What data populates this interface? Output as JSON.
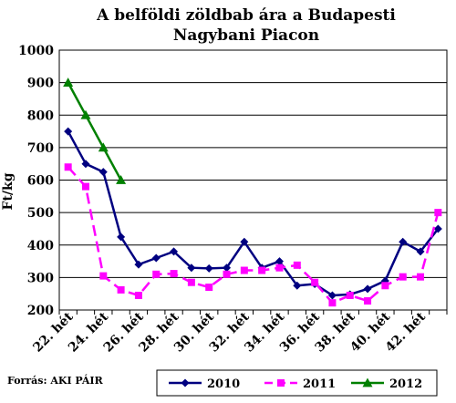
{
  "chart_data": {
    "type": "line",
    "title_line1": "A belföldi zöldbab ára a Budapesti",
    "title_line2": "Nagybani Piacon",
    "ylabel": "Ft/kg",
    "ylim": [
      200,
      1000
    ],
    "yticks": [
      200,
      300,
      400,
      500,
      600,
      700,
      800,
      900,
      1000
    ],
    "grid": true,
    "legend_position": "bottom",
    "source": "Forrás: AKI PÁIR",
    "x": [
      "22. hét",
      "23. hét",
      "24. hét",
      "25. hét",
      "26. hét",
      "27. hét",
      "28. hét",
      "29. hét",
      "30. hét",
      "31. hét",
      "32. hét",
      "33. hét",
      "34. hét",
      "35. hét",
      "36. hét",
      "37. hét",
      "38. hét",
      "39. hét",
      "40. hét",
      "41. hét",
      "42. hét",
      "43. hét"
    ],
    "xtick_labels": [
      "22. hét",
      "24. hét",
      "26. hét",
      "28. hét",
      "30. hét",
      "32. hét",
      "34. hét",
      "36. hét",
      "38. hét",
      "40. hét",
      "42. hét"
    ],
    "series": [
      {
        "name": "2010",
        "color": "#000080",
        "marker": "diamond",
        "dash": "solid",
        "values": [
          750,
          650,
          625,
          425,
          340,
          360,
          380,
          330,
          328,
          330,
          410,
          330,
          350,
          275,
          280,
          245,
          248,
          265,
          290,
          410,
          380,
          450
        ]
      },
      {
        "name": "2011",
        "color": "#FF00FF",
        "marker": "square",
        "dash": "dashed",
        "values": [
          640,
          580,
          305,
          262,
          245,
          310,
          312,
          285,
          270,
          310,
          322,
          322,
          330,
          338,
          285,
          222,
          245,
          228,
          275,
          302,
          302,
          500
        ]
      },
      {
        "name": "2012",
        "color": "#008000",
        "marker": "triangle",
        "dash": "solid",
        "values": [
          900,
          800,
          700,
          600,
          null,
          null,
          null,
          null,
          null,
          null,
          null,
          null,
          null,
          null,
          null,
          null,
          null,
          null,
          null,
          null,
          null,
          null
        ]
      }
    ]
  }
}
